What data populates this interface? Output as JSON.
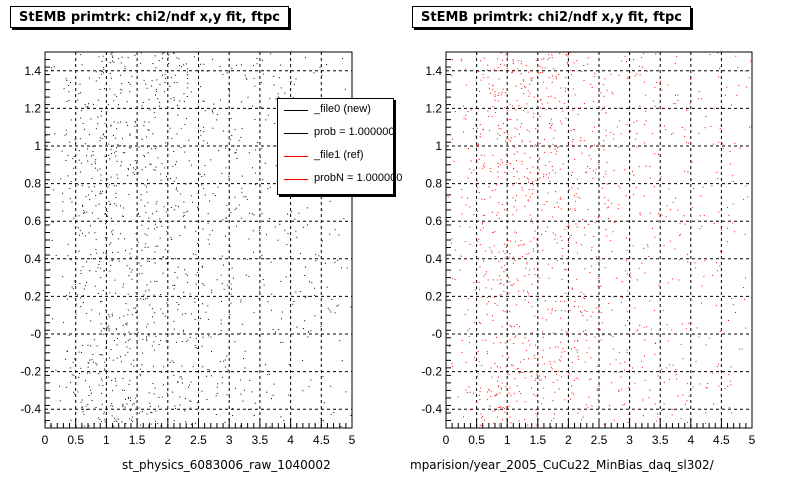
{
  "chart_data": [
    {
      "type": "scatter",
      "title": "StEMB primtrk: chi2/ndf x,y fit, ftpc",
      "xlabel": "st_physics_6083006_raw_1040002",
      "ylabel": "",
      "xlim": [
        0,
        5
      ],
      "ylim": [
        -0.5,
        1.5
      ],
      "x_tick_labels": [
        "0",
        "0.5",
        "1",
        "1.5",
        "2",
        "2.5",
        "3",
        "3.5",
        "4",
        "4.5",
        "5"
      ],
      "y_tick_labels": [
        "-0.4",
        "-0.2",
        "-0",
        "0.2",
        "0.4",
        "0.6",
        "0.8",
        "1",
        "1.2",
        "1.4"
      ],
      "grid": true,
      "marker_color": "#000000",
      "n_points": 1300,
      "x_density": [
        2,
        6,
        10,
        13,
        12,
        11,
        10,
        9,
        8,
        7,
        6,
        5,
        5,
        4,
        4,
        4,
        3,
        3,
        3,
        2
      ],
      "legend": {
        "placement": "top-right",
        "entries": [
          {
            "label": "_file0 (new)",
            "color": "#000000"
          },
          {
            "label": "prob = 1.000000",
            "color": "#000000"
          },
          {
            "label": "_file1 (ref)",
            "color": "#ff0000"
          },
          {
            "label": "probN = 1.000000",
            "color": "#ff0000"
          }
        ]
      }
    },
    {
      "type": "scatter",
      "title": "StEMB primtrk: chi2/ndf x,y fit, ftpc",
      "xlabel": "mparision/year_2005_CuCu22_MinBias_daq_sl302/",
      "ylabel": "",
      "xlim": [
        0,
        5
      ],
      "ylim": [
        -0.5,
        1.5
      ],
      "x_tick_labels": [
        "0",
        "0.5",
        "1",
        "1.5",
        "2",
        "2.5",
        "3",
        "3.5",
        "4",
        "4.5",
        "5"
      ],
      "y_tick_labels": [
        "-0.4",
        "-0.2",
        "-0",
        "0.2",
        "0.4",
        "0.6",
        "0.8",
        "1",
        "1.2",
        "1.4"
      ],
      "grid": true,
      "marker_color": "#ff0000",
      "n_points": 1300,
      "x_density": [
        2,
        6,
        10,
        13,
        12,
        11,
        10,
        9,
        8,
        7,
        6,
        5,
        5,
        4,
        4,
        4,
        3,
        3,
        3,
        2
      ]
    }
  ]
}
